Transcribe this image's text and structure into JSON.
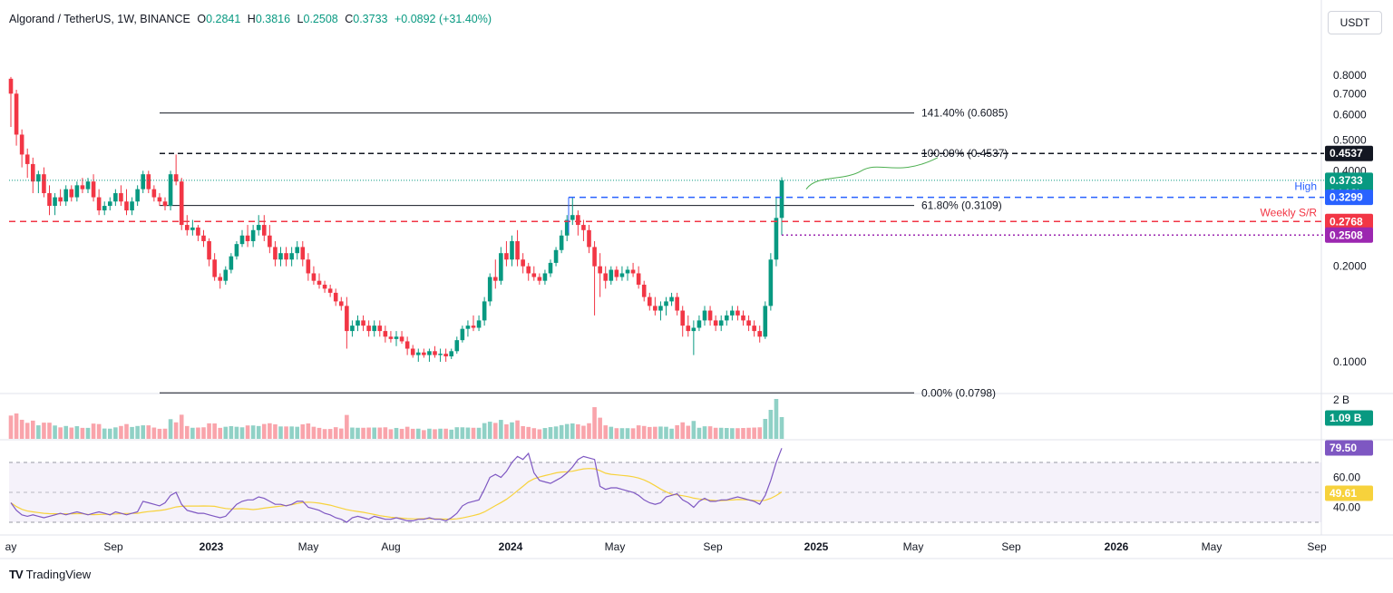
{
  "header": {
    "symbol": "Algorand / TetherUS, 1W, BINANCE",
    "o_label": "O",
    "o": "0.2841",
    "h_label": "H",
    "h": "0.3816",
    "l_label": "L",
    "l": "0.2508",
    "c_label": "C",
    "c": "0.3733",
    "change": "+0.0892 (+31.40%)"
  },
  "currency_button": "USDT",
  "footer": {
    "brand": "TradingView"
  },
  "colors": {
    "up": "#089981",
    "down": "#f23645",
    "rsi": "#7e57c2",
    "rsi_ma": "#f7d23c",
    "support": "#f23645",
    "high": "#2962ff",
    "low": "#9c27b0",
    "projection": "#4caf50"
  },
  "chart_data": {
    "type": "candlestick",
    "timeframe": "1W",
    "price_axis": {
      "ticks": [
        "0.8000",
        "0.7000",
        "0.6000",
        "0.5000",
        "0.4000",
        "0.2000",
        "0.1000"
      ],
      "scale": "log"
    },
    "time_axis": {
      "labels": [
        "ay",
        "Sep",
        "2023",
        "May",
        "Aug",
        "2024",
        "May",
        "Sep",
        "2025",
        "May",
        "Sep",
        "2026",
        "May",
        "Sep"
      ]
    },
    "fib_levels": [
      {
        "label": "141.40% (0.6085)",
        "price": 0.6085
      },
      {
        "label": "100.00% (0.4537)",
        "price": 0.4537
      },
      {
        "label": "61.80% (0.3109)",
        "price": 0.3109
      },
      {
        "label": "0.00% (0.0798)",
        "price": 0.0798
      }
    ],
    "annotations": [
      {
        "text": "High",
        "price": 0.3299
      },
      {
        "text": "Weekly S/R",
        "price": 0.2768
      }
    ],
    "price_tags": [
      {
        "text": "0.4537",
        "price": 0.4537,
        "color": "#131722"
      },
      {
        "text": "0.3733",
        "sub": "2d 12h",
        "price": 0.3733,
        "color": "#089981"
      },
      {
        "text": "0.3299",
        "price": 0.3299,
        "color": "#2962ff"
      },
      {
        "text": "0.2768",
        "price": 0.2768,
        "color": "#f23645"
      },
      {
        "text": "0.2508",
        "price": 0.2508,
        "color": "#9c27b0"
      }
    ],
    "candles": [
      [
        0.78,
        0.79,
        0.55,
        0.7
      ],
      [
        0.7,
        0.72,
        0.48,
        0.52
      ],
      [
        0.52,
        0.54,
        0.41,
        0.45
      ],
      [
        0.45,
        0.47,
        0.38,
        0.42
      ],
      [
        0.42,
        0.44,
        0.34,
        0.37
      ],
      [
        0.37,
        0.4,
        0.34,
        0.39
      ],
      [
        0.39,
        0.41,
        0.33,
        0.34
      ],
      [
        0.34,
        0.36,
        0.29,
        0.31
      ],
      [
        0.31,
        0.34,
        0.29,
        0.33
      ],
      [
        0.33,
        0.35,
        0.31,
        0.32
      ],
      [
        0.32,
        0.36,
        0.31,
        0.35
      ],
      [
        0.35,
        0.36,
        0.32,
        0.33
      ],
      [
        0.33,
        0.37,
        0.32,
        0.36
      ],
      [
        0.36,
        0.38,
        0.34,
        0.35
      ],
      [
        0.35,
        0.38,
        0.34,
        0.37
      ],
      [
        0.37,
        0.39,
        0.32,
        0.33
      ],
      [
        0.33,
        0.35,
        0.29,
        0.3
      ],
      [
        0.3,
        0.32,
        0.29,
        0.31
      ],
      [
        0.31,
        0.33,
        0.3,
        0.32
      ],
      [
        0.32,
        0.35,
        0.31,
        0.34
      ],
      [
        0.34,
        0.36,
        0.31,
        0.32
      ],
      [
        0.32,
        0.35,
        0.29,
        0.3
      ],
      [
        0.3,
        0.33,
        0.29,
        0.32
      ],
      [
        0.32,
        0.36,
        0.31,
        0.35
      ],
      [
        0.35,
        0.4,
        0.34,
        0.39
      ],
      [
        0.39,
        0.4,
        0.34,
        0.35
      ],
      [
        0.35,
        0.36,
        0.32,
        0.33
      ],
      [
        0.33,
        0.34,
        0.31,
        0.32
      ],
      [
        0.32,
        0.33,
        0.3,
        0.31
      ],
      [
        0.31,
        0.4,
        0.3,
        0.39
      ],
      [
        0.39,
        0.45,
        0.36,
        0.37
      ],
      [
        0.37,
        0.38,
        0.26,
        0.27
      ],
      [
        0.27,
        0.29,
        0.25,
        0.26
      ],
      [
        0.26,
        0.28,
        0.25,
        0.265
      ],
      [
        0.265,
        0.27,
        0.24,
        0.25
      ],
      [
        0.25,
        0.26,
        0.23,
        0.24
      ],
      [
        0.24,
        0.245,
        0.2,
        0.21
      ],
      [
        0.21,
        0.22,
        0.18,
        0.185
      ],
      [
        0.185,
        0.19,
        0.17,
        0.18
      ],
      [
        0.18,
        0.2,
        0.175,
        0.195
      ],
      [
        0.195,
        0.22,
        0.19,
        0.215
      ],
      [
        0.215,
        0.24,
        0.21,
        0.235
      ],
      [
        0.235,
        0.26,
        0.23,
        0.25
      ],
      [
        0.25,
        0.27,
        0.23,
        0.24
      ],
      [
        0.24,
        0.27,
        0.23,
        0.26
      ],
      [
        0.26,
        0.29,
        0.25,
        0.27
      ],
      [
        0.27,
        0.29,
        0.24,
        0.25
      ],
      [
        0.25,
        0.27,
        0.22,
        0.23
      ],
      [
        0.23,
        0.24,
        0.2,
        0.21
      ],
      [
        0.21,
        0.23,
        0.2,
        0.22
      ],
      [
        0.22,
        0.23,
        0.2,
        0.21
      ],
      [
        0.21,
        0.23,
        0.2,
        0.22
      ],
      [
        0.22,
        0.24,
        0.21,
        0.23
      ],
      [
        0.23,
        0.24,
        0.2,
        0.21
      ],
      [
        0.21,
        0.22,
        0.18,
        0.19
      ],
      [
        0.19,
        0.2,
        0.175,
        0.18
      ],
      [
        0.18,
        0.19,
        0.17,
        0.175
      ],
      [
        0.175,
        0.18,
        0.165,
        0.17
      ],
      [
        0.17,
        0.175,
        0.16,
        0.165
      ],
      [
        0.165,
        0.17,
        0.15,
        0.155
      ],
      [
        0.155,
        0.16,
        0.145,
        0.15
      ],
      [
        0.15,
        0.16,
        0.11,
        0.125
      ],
      [
        0.125,
        0.135,
        0.12,
        0.13
      ],
      [
        0.13,
        0.14,
        0.125,
        0.135
      ],
      [
        0.135,
        0.14,
        0.125,
        0.13
      ],
      [
        0.13,
        0.135,
        0.12,
        0.125
      ],
      [
        0.125,
        0.135,
        0.12,
        0.13
      ],
      [
        0.13,
        0.135,
        0.12,
        0.125
      ],
      [
        0.125,
        0.13,
        0.115,
        0.12
      ],
      [
        0.12,
        0.125,
        0.115,
        0.118
      ],
      [
        0.118,
        0.125,
        0.112,
        0.12
      ],
      [
        0.12,
        0.125,
        0.114,
        0.116
      ],
      [
        0.116,
        0.12,
        0.105,
        0.11
      ],
      [
        0.11,
        0.113,
        0.103,
        0.105
      ],
      [
        0.105,
        0.11,
        0.1,
        0.107
      ],
      [
        0.107,
        0.11,
        0.103,
        0.105
      ],
      [
        0.105,
        0.11,
        0.1,
        0.108
      ],
      [
        0.108,
        0.112,
        0.103,
        0.105
      ],
      [
        0.105,
        0.11,
        0.1,
        0.106
      ],
      [
        0.106,
        0.11,
        0.1,
        0.104
      ],
      [
        0.104,
        0.11,
        0.102,
        0.108
      ],
      [
        0.108,
        0.12,
        0.106,
        0.117
      ],
      [
        0.117,
        0.13,
        0.115,
        0.127
      ],
      [
        0.127,
        0.135,
        0.12,
        0.13
      ],
      [
        0.13,
        0.14,
        0.125,
        0.128
      ],
      [
        0.128,
        0.14,
        0.125,
        0.135
      ],
      [
        0.135,
        0.16,
        0.13,
        0.155
      ],
      [
        0.155,
        0.19,
        0.15,
        0.185
      ],
      [
        0.185,
        0.21,
        0.17,
        0.18
      ],
      [
        0.18,
        0.23,
        0.175,
        0.22
      ],
      [
        0.22,
        0.24,
        0.2,
        0.21
      ],
      [
        0.21,
        0.25,
        0.2,
        0.24
      ],
      [
        0.24,
        0.26,
        0.2,
        0.21
      ],
      [
        0.21,
        0.22,
        0.19,
        0.2
      ],
      [
        0.2,
        0.205,
        0.18,
        0.19
      ],
      [
        0.19,
        0.2,
        0.18,
        0.185
      ],
      [
        0.185,
        0.19,
        0.175,
        0.18
      ],
      [
        0.18,
        0.195,
        0.175,
        0.19
      ],
      [
        0.19,
        0.21,
        0.185,
        0.205
      ],
      [
        0.205,
        0.23,
        0.2,
        0.225
      ],
      [
        0.225,
        0.26,
        0.22,
        0.25
      ],
      [
        0.25,
        0.29,
        0.24,
        0.28
      ],
      [
        0.28,
        0.33,
        0.27,
        0.29
      ],
      [
        0.29,
        0.3,
        0.25,
        0.27
      ],
      [
        0.27,
        0.28,
        0.24,
        0.26
      ],
      [
        0.26,
        0.27,
        0.22,
        0.23
      ],
      [
        0.23,
        0.24,
        0.14,
        0.2
      ],
      [
        0.2,
        0.22,
        0.16,
        0.19
      ],
      [
        0.19,
        0.2,
        0.17,
        0.18
      ],
      [
        0.18,
        0.2,
        0.175,
        0.195
      ],
      [
        0.195,
        0.2,
        0.18,
        0.185
      ],
      [
        0.185,
        0.2,
        0.18,
        0.19
      ],
      [
        0.19,
        0.2,
        0.18,
        0.195
      ],
      [
        0.195,
        0.205,
        0.185,
        0.19
      ],
      [
        0.19,
        0.2,
        0.17,
        0.175
      ],
      [
        0.175,
        0.18,
        0.155,
        0.16
      ],
      [
        0.16,
        0.165,
        0.145,
        0.15
      ],
      [
        0.15,
        0.16,
        0.14,
        0.145
      ],
      [
        0.145,
        0.155,
        0.135,
        0.15
      ],
      [
        0.15,
        0.16,
        0.14,
        0.155
      ],
      [
        0.155,
        0.165,
        0.15,
        0.16
      ],
      [
        0.16,
        0.165,
        0.14,
        0.145
      ],
      [
        0.145,
        0.15,
        0.12,
        0.13
      ],
      [
        0.13,
        0.14,
        0.12,
        0.125
      ],
      [
        0.125,
        0.135,
        0.105,
        0.128
      ],
      [
        0.128,
        0.14,
        0.125,
        0.135
      ],
      [
        0.135,
        0.15,
        0.13,
        0.145
      ],
      [
        0.145,
        0.15,
        0.13,
        0.135
      ],
      [
        0.135,
        0.14,
        0.125,
        0.13
      ],
      [
        0.13,
        0.14,
        0.125,
        0.135
      ],
      [
        0.135,
        0.145,
        0.13,
        0.14
      ],
      [
        0.14,
        0.15,
        0.135,
        0.145
      ],
      [
        0.145,
        0.15,
        0.135,
        0.14
      ],
      [
        0.14,
        0.145,
        0.13,
        0.135
      ],
      [
        0.135,
        0.14,
        0.125,
        0.13
      ],
      [
        0.13,
        0.135,
        0.12,
        0.125
      ],
      [
        0.125,
        0.13,
        0.115,
        0.12
      ],
      [
        0.12,
        0.155,
        0.118,
        0.15
      ],
      [
        0.15,
        0.22,
        0.145,
        0.21
      ],
      [
        0.21,
        0.33,
        0.2,
        0.2841
      ],
      [
        0.2841,
        0.3816,
        0.2508,
        0.3733
      ]
    ],
    "volume_axis": {
      "ticks": [
        "2 B"
      ],
      "last_volume": "1.09 B"
    },
    "rsi": {
      "levels": [
        "60.00",
        "40.00"
      ],
      "rsi_value": "79.50",
      "ma_value": "49.61",
      "values": [
        43,
        38,
        35,
        34,
        35,
        34,
        33,
        34,
        35,
        36,
        35,
        36,
        37,
        36,
        35,
        36,
        37,
        36,
        35,
        37,
        36,
        35,
        36,
        37,
        44,
        43,
        42,
        41,
        43,
        48,
        50,
        42,
        38,
        37,
        36,
        36,
        35,
        34,
        33,
        34,
        38,
        42,
        44,
        45,
        45,
        47,
        46,
        44,
        42,
        42,
        41,
        42,
        44,
        44,
        40,
        39,
        38,
        36,
        35,
        33,
        32,
        30,
        33,
        34,
        33,
        32,
        34,
        33,
        32,
        32,
        33,
        32,
        31,
        31,
        32,
        32,
        33,
        32,
        32,
        31,
        33,
        36,
        41,
        43,
        44,
        45,
        52,
        60,
        62,
        60,
        64,
        70,
        74,
        72,
        76,
        63,
        58,
        57,
        56,
        58,
        60,
        63,
        67,
        72,
        74,
        73,
        72,
        54,
        52,
        53,
        53,
        52,
        51,
        50,
        48,
        45,
        43,
        42,
        43,
        47,
        48,
        49,
        45,
        43,
        40,
        44,
        46,
        44,
        44,
        45,
        45,
        46,
        47,
        46,
        45,
        44,
        42,
        48,
        58,
        70,
        79.5
      ]
    }
  }
}
